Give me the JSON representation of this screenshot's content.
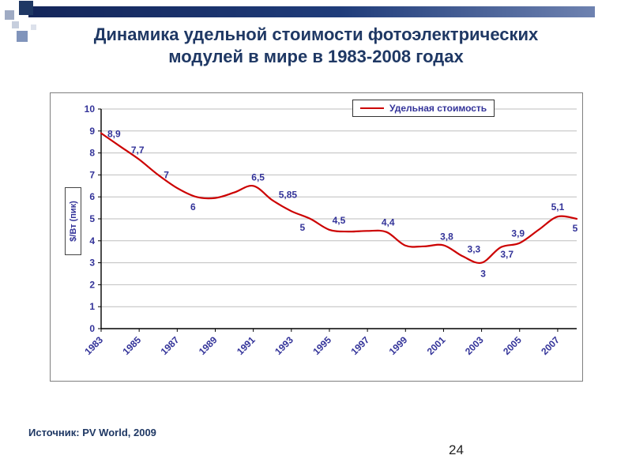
{
  "slide": {
    "title_line1": "Динамика удельной стоимости фотоэлектрических",
    "title_line2": "модулей в мире в 1983-2008 годах",
    "source": "Источник: PV World, 2009",
    "page_number": "24"
  },
  "colors": {
    "title": "#1F3864",
    "axis_text": "#333399",
    "series_line": "#CC0000",
    "grid": "#BEBEBE",
    "axis_line": "#000000",
    "banner_dark": "#14265A",
    "banner_light": "#6E82B0"
  },
  "chart_data": {
    "type": "line",
    "title": "",
    "xlabel": "",
    "ylabel": "$/Вт (пик)",
    "xlim": [
      1983,
      2008
    ],
    "ylim": [
      0,
      10
    ],
    "ytick_step": 1,
    "grid": true,
    "legend_position": "top-center",
    "x_ticks": [
      "1983",
      "1985",
      "1987",
      "1989",
      "1991",
      "1993",
      "1995",
      "1997",
      "1999",
      "2001",
      "2003",
      "2005",
      "2007"
    ],
    "series": [
      {
        "name": "Удельная стоимость",
        "color": "#CC0000",
        "points": [
          {
            "year": 1983,
            "value": 8.9,
            "label": "8,9",
            "dx": 8,
            "dy": 5,
            "anchor": "start"
          },
          {
            "year": 1984,
            "value": 8.3
          },
          {
            "year": 1985,
            "value": 7.7,
            "label": "7,7",
            "dx": -2,
            "dy": -8,
            "anchor": "middle"
          },
          {
            "year": 1986,
            "value": 7.0,
            "label": "7",
            "dx": 7,
            "dy": 4,
            "anchor": "start"
          },
          {
            "year": 1987,
            "value": 6.4
          },
          {
            "year": 1988,
            "value": 6.0,
            "label": "6",
            "dx": -4,
            "dy": 17,
            "anchor": "middle"
          },
          {
            "year": 1989,
            "value": 5.95
          },
          {
            "year": 1990,
            "value": 6.2
          },
          {
            "year": 1991,
            "value": 6.5,
            "label": "6,5",
            "dx": 6,
            "dy": -7,
            "anchor": "middle"
          },
          {
            "year": 1992,
            "value": 5.85,
            "label": "5,85",
            "dx": 8,
            "dy": -3,
            "anchor": "start"
          },
          {
            "year": 1993,
            "value": 5.35
          },
          {
            "year": 1994,
            "value": 5.0,
            "label": "5",
            "dx": -10,
            "dy": 15,
            "anchor": "middle"
          },
          {
            "year": 1995,
            "value": 4.5,
            "label": "4,5",
            "dx": 12,
            "dy": -8,
            "anchor": "middle"
          },
          {
            "year": 1996,
            "value": 4.42
          },
          {
            "year": 1997,
            "value": 4.45
          },
          {
            "year": 1998,
            "value": 4.4,
            "label": "4,4",
            "dx": 2,
            "dy": -8,
            "anchor": "middle"
          },
          {
            "year": 1999,
            "value": 3.78
          },
          {
            "year": 2000,
            "value": 3.75
          },
          {
            "year": 2001,
            "value": 3.8,
            "label": "3,8",
            "dx": 4,
            "dy": -7,
            "anchor": "middle"
          },
          {
            "year": 2002,
            "value": 3.3,
            "label": "3,3",
            "dx": 6,
            "dy": -5,
            "anchor": "start"
          },
          {
            "year": 2003,
            "value": 3.0,
            "label": "3",
            "dx": 2,
            "dy": 18,
            "anchor": "middle"
          },
          {
            "year": 2004,
            "value": 3.7,
            "label": "3,7",
            "dx": 8,
            "dy": 13,
            "anchor": "middle"
          },
          {
            "year": 2005,
            "value": 3.9,
            "label": "3,9",
            "dx": -2,
            "dy": -8,
            "anchor": "middle"
          },
          {
            "year": 2006,
            "value": 4.5
          },
          {
            "year": 2007,
            "value": 5.1,
            "label": "5,1",
            "dx": 0,
            "dy": -8,
            "anchor": "middle"
          },
          {
            "year": 2008,
            "value": 5.0,
            "label": "5",
            "dx": -2,
            "dy": 16,
            "anchor": "middle"
          }
        ]
      }
    ]
  }
}
